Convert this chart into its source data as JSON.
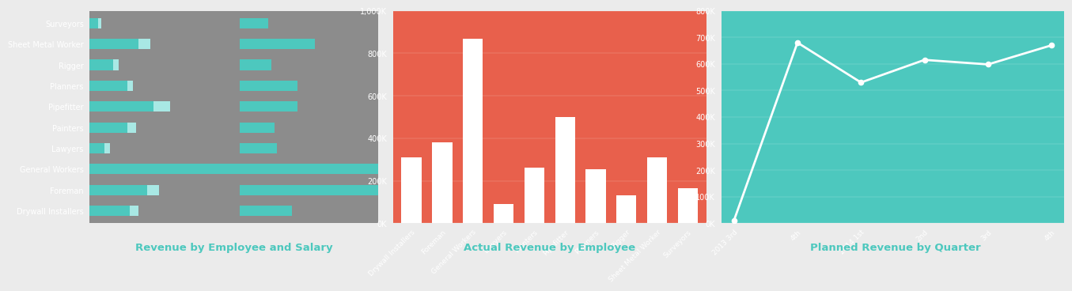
{
  "chart1": {
    "title": "Revenue by Employee and Salary",
    "bg_color": "#8c8c8c",
    "bar_color1": "#4dc8be",
    "bar_color2": "#a8e8e4",
    "categories": [
      "Surveyors",
      "Sheet Metal Worker",
      "Rigger",
      "Planners",
      "Pipefitter",
      "Painters",
      "Lawyers",
      "General Workers",
      "Foreman",
      "Drywall Installers"
    ],
    "values1": [
      0.03,
      0.17,
      0.08,
      0.13,
      0.22,
      0.13,
      0.05,
      0.55,
      0.2,
      0.14
    ],
    "values2": [
      0.01,
      0.04,
      0.02,
      0.02,
      0.06,
      0.03,
      0.02,
      0.1,
      0.04,
      0.03
    ],
    "right_values": [
      0.1,
      0.26,
      0.11,
      0.2,
      0.2,
      0.12,
      0.13,
      0.75,
      0.5,
      0.18
    ]
  },
  "chart2": {
    "title": "Actual Revenue by Employee",
    "bg_color": "#e8604c",
    "bar_color": "#ffffff",
    "categories": [
      "Drywall Installers",
      "Foreman",
      "General Workers",
      "Lawyers",
      "Painters",
      "Pipefitter",
      "Planners",
      "Rigger",
      "Sheet Metal Worker",
      "Surveyors"
    ],
    "values": [
      310000,
      380000,
      870000,
      90000,
      260000,
      500000,
      255000,
      130000,
      310000,
      165000
    ],
    "ylim": [
      0,
      1000000
    ],
    "yticks": [
      0,
      200000,
      400000,
      600000,
      800000,
      1000000
    ],
    "ytick_labels": [
      "0K",
      "200K",
      "400K",
      "600K",
      "800K",
      "1,000K"
    ]
  },
  "chart3": {
    "title": "Planned Revenue by Quarter",
    "bg_color": "#4dc8be",
    "line_color": "#ffffff",
    "marker_color": "#ffffff",
    "categories": [
      "2013 3rd",
      "4th",
      "2014 1st",
      "2nd",
      "3rd",
      "4th"
    ],
    "values": [
      10000,
      680000,
      530000,
      615000,
      598000,
      670000
    ],
    "ylim": [
      0,
      800000
    ],
    "yticks": [
      0,
      100000,
      200000,
      300000,
      400000,
      500000,
      600000,
      700000,
      800000
    ],
    "ytick_labels": [
      "0K",
      "100K",
      "200K",
      "300K",
      "400K",
      "500K",
      "600K",
      "700K",
      "800K"
    ]
  },
  "title_color": "#4dc8be",
  "title_fontsize": 9.5,
  "outer_bg": "#ebebeb"
}
